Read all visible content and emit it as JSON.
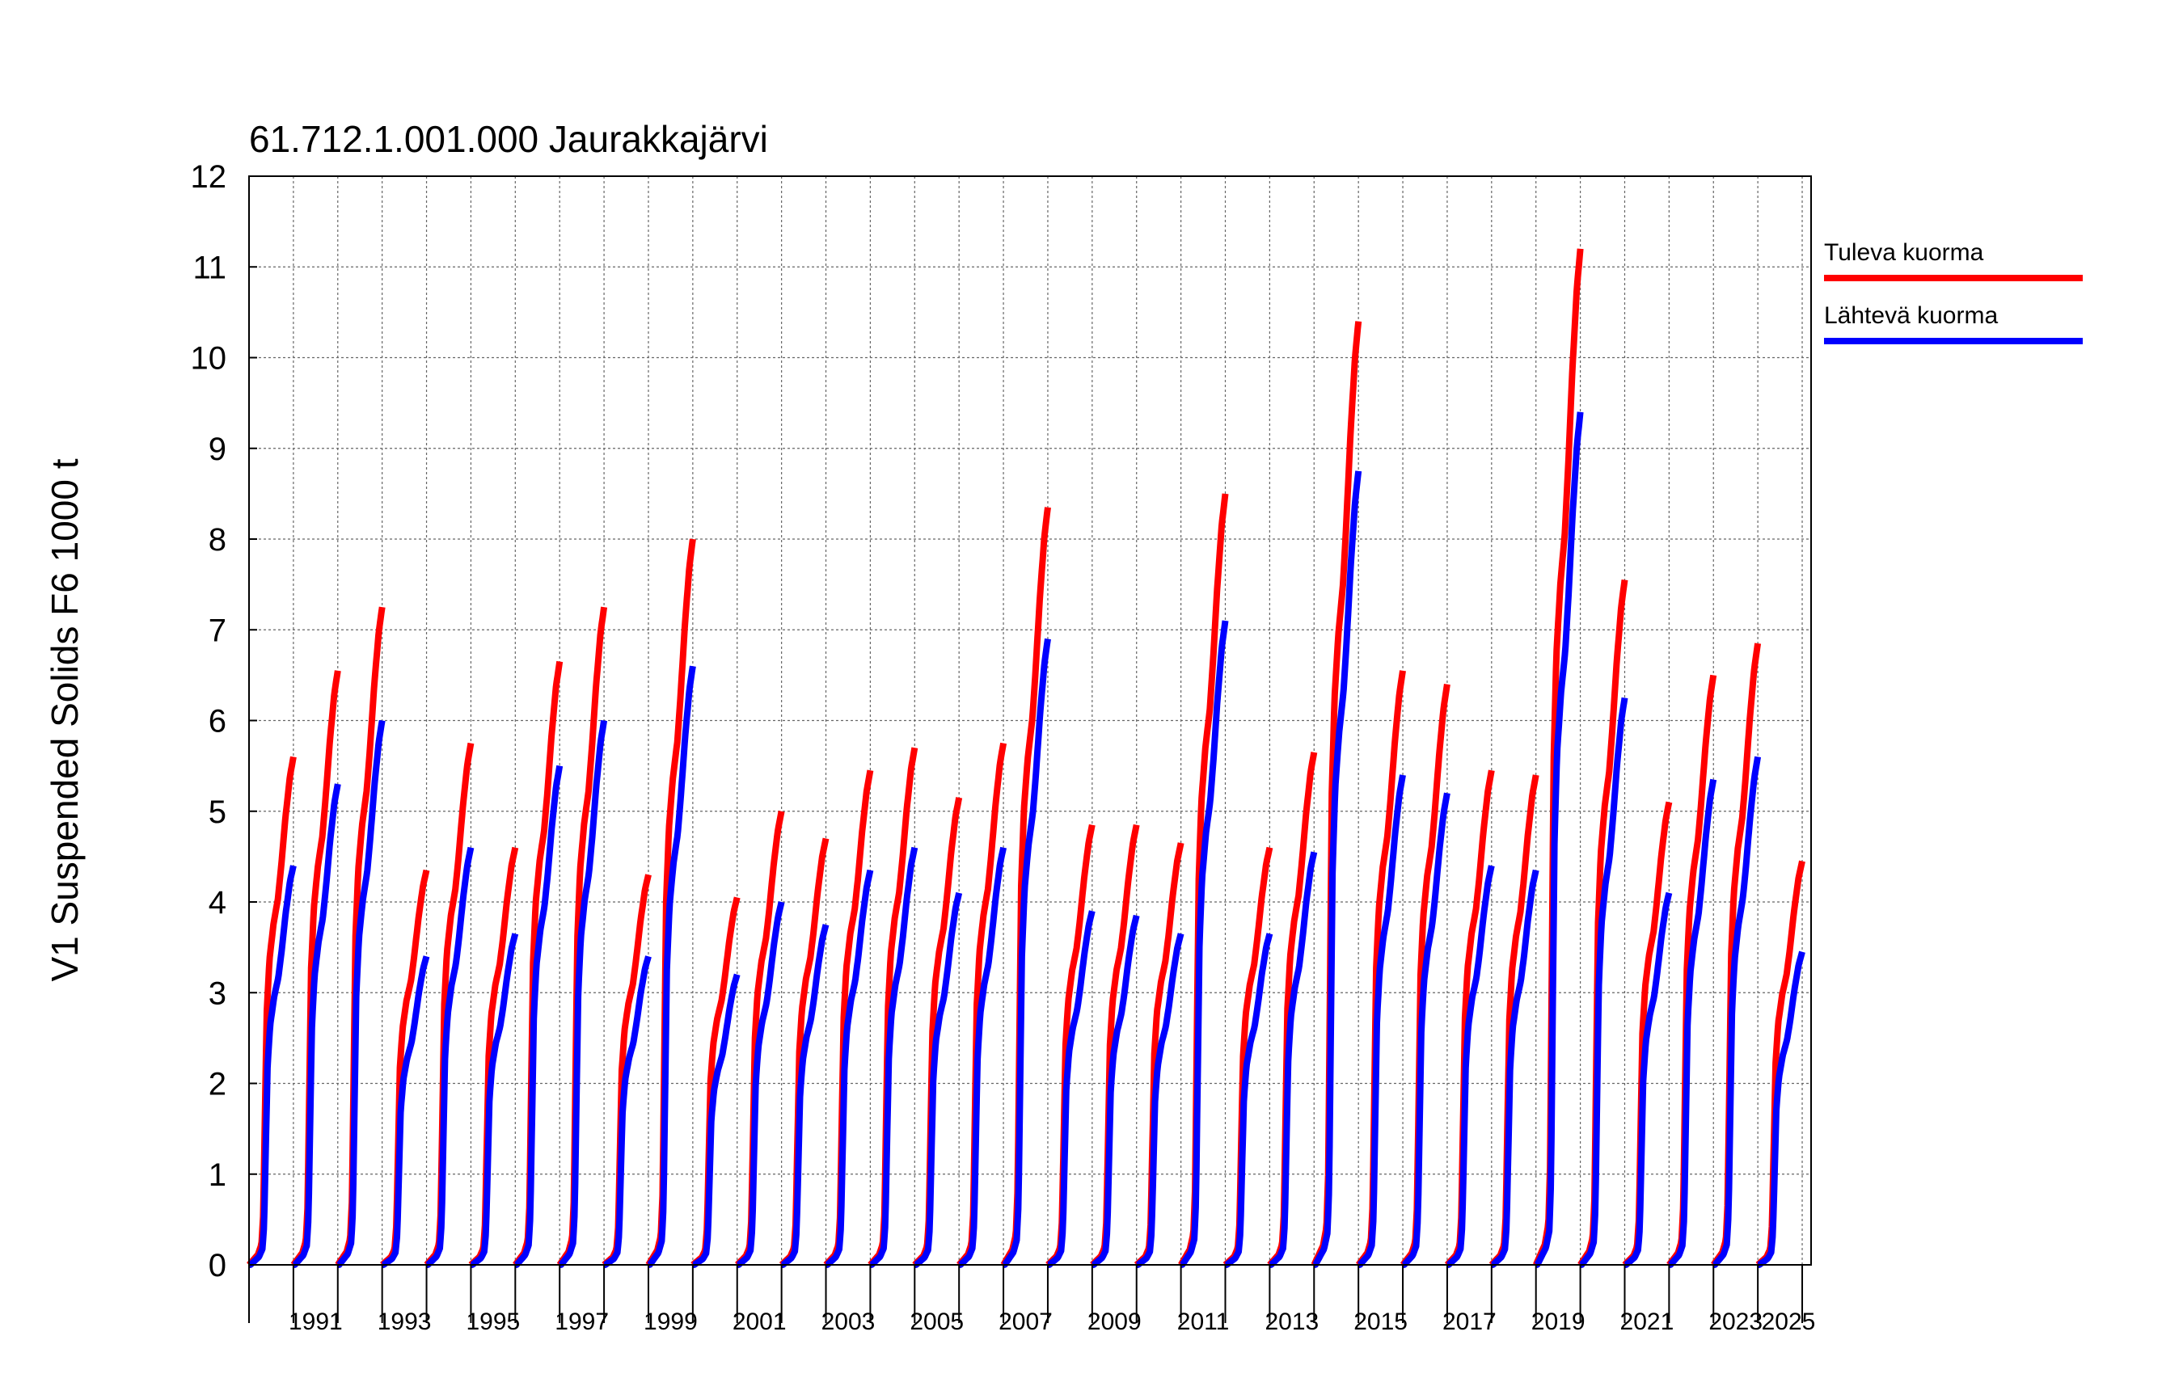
{
  "chart_data": {
    "type": "line",
    "title": "61.712.1.001.000 Jaurakkajärvi",
    "ylabel": "V1 Suspended Solids F6 1000 t",
    "xlabel": "",
    "ylim": [
      0,
      12
    ],
    "xlim": [
      1990,
      2025.2
    ],
    "grid": true,
    "legend_position": "right",
    "y_ticks": [
      0,
      1,
      2,
      3,
      4,
      5,
      6,
      7,
      8,
      9,
      10,
      11,
      12
    ],
    "x_tick_labels": [
      "1991",
      "1993",
      "1995",
      "1997",
      "1999",
      "2001",
      "2003",
      "2005",
      "2007",
      "2009",
      "2011",
      "2013",
      "2015",
      "2017",
      "2019",
      "2021",
      "2023",
      "2025"
    ],
    "years": [
      1990,
      1991,
      1992,
      1993,
      1994,
      1995,
      1996,
      1997,
      1998,
      1999,
      2000,
      2001,
      2002,
      2003,
      2004,
      2005,
      2006,
      2007,
      2008,
      2009,
      2010,
      2011,
      2012,
      2013,
      2014,
      2015,
      2016,
      2017,
      2018,
      2019,
      2020,
      2021,
      2022,
      2023,
      2024
    ],
    "series": [
      {
        "name": "Tuleva kuorma",
        "color": "#ff0000",
        "annual_totals": [
          5.6,
          6.55,
          7.25,
          4.35,
          5.75,
          4.6,
          6.65,
          7.25,
          4.3,
          8.0,
          4.05,
          5.0,
          4.7,
          5.45,
          5.7,
          5.15,
          5.75,
          8.35,
          4.85,
          4.85,
          4.65,
          8.5,
          4.6,
          5.65,
          10.4,
          6.55,
          6.4,
          5.45,
          5.4,
          11.2,
          7.55,
          5.1,
          6.5,
          6.85,
          4.45
        ]
      },
      {
        "name": "Lähtevä kuorma",
        "color": "#0000ff",
        "annual_totals": [
          4.4,
          5.3,
          6.0,
          3.4,
          4.6,
          3.65,
          5.5,
          6.0,
          3.4,
          6.6,
          3.2,
          4.0,
          3.75,
          4.35,
          4.6,
          4.1,
          4.6,
          6.9,
          3.9,
          3.85,
          3.65,
          7.1,
          3.65,
          4.55,
          8.75,
          5.4,
          5.2,
          4.4,
          4.35,
          9.4,
          6.25,
          4.1,
          5.35,
          5.6,
          3.45
        ]
      }
    ]
  }
}
